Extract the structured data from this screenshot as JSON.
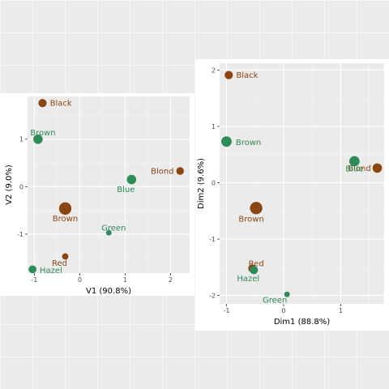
{
  "chart_data": [
    {
      "type": "scatter",
      "xlabel": "V1 (90.8%)",
      "ylabel": "V2 (9.0%)",
      "xlim": [
        -1.15,
        2.42
      ],
      "ylim": [
        -1.82,
        1.9
      ],
      "xticks": [
        -1,
        0,
        1,
        2
      ],
      "yticks": [
        -1,
        0,
        1
      ],
      "grid": true,
      "legend": "none",
      "colors": {
        "row": "#8b4513",
        "col": "#2e8b57"
      },
      "points": [
        {
          "label": "Black",
          "group": "row",
          "x": -0.82,
          "y": 1.76,
          "size": 2.5
        },
        {
          "label": "Brown",
          "group": "row",
          "x": -0.32,
          "y": -0.46,
          "size": 7
        },
        {
          "label": "Red",
          "group": "row",
          "x": -0.32,
          "y": -1.47,
          "size": 1.2
        },
        {
          "label": "Blond",
          "group": "row",
          "x": 2.21,
          "y": 0.33,
          "size": 2
        },
        {
          "label": "Brown",
          "group": "col",
          "x": -0.92,
          "y": 1.0,
          "size": 3.5
        },
        {
          "label": "Blue",
          "group": "col",
          "x": 1.14,
          "y": 0.15,
          "size": 3.5
        },
        {
          "label": "Green",
          "group": "col",
          "x": 0.64,
          "y": -0.97,
          "size": 0.8
        },
        {
          "label": "Hazel",
          "group": "col",
          "x": -1.04,
          "y": -1.74,
          "size": 2.2
        }
      ]
    },
    {
      "type": "scatter",
      "xlabel": "Dim1 (88.8%)",
      "ylabel": "Dim2 (9.6%)",
      "xlim": [
        -1.12,
        1.76
      ],
      "ylim": [
        -2.15,
        2.12
      ],
      "xticks": [
        -1,
        0,
        1
      ],
      "yticks": [
        -2,
        -1,
        0,
        1,
        2
      ],
      "grid": true,
      "legend": "none",
      "colors": {
        "row": "#8b4513",
        "col": "#2e8b57"
      },
      "points": [
        {
          "label": "Black",
          "group": "row",
          "x": -0.96,
          "y": 1.91,
          "size": 2.5
        },
        {
          "label": "Brown",
          "group": "row",
          "x": -0.48,
          "y": -0.45,
          "size": 7
        },
        {
          "label": "Red",
          "group": "row",
          "x": -0.55,
          "y": -1.52,
          "size": 2.2
        },
        {
          "label": "Blond",
          "group": "row",
          "x": 1.64,
          "y": 0.26,
          "size": 3.5
        },
        {
          "label": "Brown",
          "group": "col",
          "x": -1.0,
          "y": 0.73,
          "size": 4.5
        },
        {
          "label": "Blue",
          "group": "col",
          "x": 1.24,
          "y": 0.38,
          "size": 4.5
        },
        {
          "label": "Green",
          "group": "col",
          "x": 0.06,
          "y": -1.98,
          "size": 0.8
        },
        {
          "label": "Hazel",
          "group": "col",
          "x": -0.52,
          "y": -1.55,
          "size": 2.5
        }
      ]
    }
  ]
}
